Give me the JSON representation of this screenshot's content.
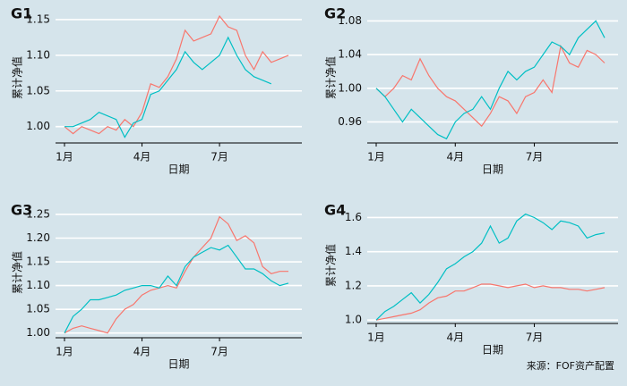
{
  "chart_data": [
    {
      "type": "line",
      "title": "G1",
      "y_label": "累计净值",
      "x_label": "日期",
      "categories": [
        "1月",
        null,
        null,
        null,
        null,
        null,
        null,
        null,
        null,
        "4月",
        null,
        null,
        null,
        null,
        null,
        null,
        null,
        null,
        "7月",
        null,
        null,
        null,
        null,
        null,
        null,
        null,
        null
      ],
      "series": [
        {
          "color": "#f8766d",
          "values": [
            1.0,
            0.99,
            1.0,
            0.995,
            0.99,
            1.0,
            0.995,
            1.01,
            1.0,
            1.02,
            1.06,
            1.055,
            1.07,
            1.095,
            1.135,
            1.12,
            1.125,
            1.13,
            1.155,
            1.14,
            1.135,
            1.1,
            1.08,
            1.105,
            1.09,
            1.095,
            1.1
          ]
        },
        {
          "color": "#00bfc4",
          "values": [
            1.0,
            1.0,
            1.005,
            1.01,
            1.02,
            1.015,
            1.01,
            0.985,
            1.005,
            1.01,
            1.045,
            1.05,
            1.065,
            1.08,
            1.105,
            1.09,
            1.08,
            1.09,
            1.1,
            1.125,
            1.1,
            1.08,
            1.07,
            1.065,
            1.06,
            null,
            null
          ]
        }
      ],
      "ylim": [
        0.977,
        1.16
      ],
      "yticks": [
        {
          "value": 1,
          "label": "1.00"
        },
        {
          "value": 1.05,
          "label": "1.05"
        },
        {
          "value": 1.1,
          "label": "1.10"
        },
        {
          "value": 1.15,
          "label": "1.15"
        }
      ],
      "grid": true
    },
    {
      "type": "line",
      "title": "G2",
      "y_label": "累计净值",
      "x_label": "日期",
      "categories": [
        "1月",
        null,
        null,
        null,
        null,
        null,
        null,
        null,
        null,
        "4月",
        null,
        null,
        null,
        null,
        null,
        null,
        null,
        null,
        "7月",
        null,
        null,
        null,
        null,
        null,
        null,
        null,
        null
      ],
      "series": [
        {
          "color": "#f8766d",
          "values": [
            1.0,
            0.99,
            1.0,
            1.015,
            1.01,
            1.035,
            1.015,
            1.0,
            0.99,
            0.985,
            0.975,
            0.965,
            0.955,
            0.97,
            0.99,
            0.985,
            0.97,
            0.99,
            0.995,
            1.01,
            0.995,
            1.05,
            1.03,
            1.025,
            1.045,
            1.04,
            1.03
          ]
        },
        {
          "color": "#00bfc4",
          "values": [
            1.0,
            0.99,
            0.975,
            0.96,
            0.975,
            0.965,
            0.955,
            0.945,
            0.94,
            0.96,
            0.97,
            0.975,
            0.99,
            0.975,
            1.0,
            1.02,
            1.01,
            1.02,
            1.025,
            1.04,
            1.055,
            1.05,
            1.04,
            1.06,
            1.07,
            1.08,
            1.06
          ]
        }
      ],
      "ylim": [
        0.935,
        1.09
      ],
      "yticks": [
        {
          "value": 0.96,
          "label": "0.96"
        },
        {
          "value": 1,
          "label": "1.00"
        },
        {
          "value": 1.04,
          "label": "1.04"
        },
        {
          "value": 1.08,
          "label": "1.08"
        }
      ],
      "grid": true
    },
    {
      "type": "line",
      "title": "G3",
      "y_label": "累计净值",
      "x_label": "日期",
      "categories": [
        "1月",
        null,
        null,
        null,
        null,
        null,
        null,
        null,
        null,
        "4月",
        null,
        null,
        null,
        null,
        null,
        null,
        null,
        null,
        "7月",
        null,
        null,
        null,
        null,
        null,
        null,
        null,
        null
      ],
      "series": [
        {
          "color": "#f8766d",
          "values": [
            1.0,
            1.01,
            1.015,
            1.01,
            1.005,
            1.0,
            1.03,
            1.05,
            1.06,
            1.08,
            1.09,
            1.095,
            1.1,
            1.095,
            1.13,
            1.16,
            1.18,
            1.2,
            1.245,
            1.23,
            1.195,
            1.205,
            1.19,
            1.14,
            1.125,
            1.13,
            1.13
          ]
        },
        {
          "color": "#00bfc4",
          "values": [
            1.0,
            1.035,
            1.05,
            1.07,
            1.07,
            1.075,
            1.08,
            1.09,
            1.095,
            1.1,
            1.1,
            1.095,
            1.12,
            1.1,
            1.14,
            1.16,
            1.17,
            1.18,
            1.175,
            1.185,
            1.16,
            1.135,
            1.135,
            1.125,
            1.11,
            1.1,
            1.105
          ]
        }
      ],
      "ylim": [
        0.99,
        1.265
      ],
      "yticks": [
        {
          "value": 1,
          "label": "1.00"
        },
        {
          "value": 1.05,
          "label": "1.05"
        },
        {
          "value": 1.1,
          "label": "1.10"
        },
        {
          "value": 1.15,
          "label": "1.15"
        },
        {
          "value": 1.2,
          "label": "1.20"
        },
        {
          "value": 1.25,
          "label": "1.25"
        }
      ],
      "grid": true
    },
    {
      "type": "line",
      "title": "G4",
      "y_label": "累计净值",
      "x_label": "日期",
      "categories": [
        "1月",
        null,
        null,
        null,
        null,
        null,
        null,
        null,
        null,
        "4月",
        null,
        null,
        null,
        null,
        null,
        null,
        null,
        null,
        "7月",
        null,
        null,
        null,
        null,
        null,
        null,
        null,
        null
      ],
      "series": [
        {
          "color": "#f8766d",
          "values": [
            1.0,
            1.01,
            1.02,
            1.03,
            1.04,
            1.06,
            1.1,
            1.13,
            1.14,
            1.17,
            1.17,
            1.19,
            1.21,
            1.21,
            1.2,
            1.19,
            1.2,
            1.21,
            1.19,
            1.2,
            1.19,
            1.19,
            1.18,
            1.18,
            1.17,
            1.18,
            1.19
          ]
        },
        {
          "color": "#00bfc4",
          "values": [
            1.0,
            1.05,
            1.08,
            1.12,
            1.16,
            1.1,
            1.15,
            1.22,
            1.3,
            1.33,
            1.37,
            1.4,
            1.45,
            1.55,
            1.45,
            1.48,
            1.58,
            1.62,
            1.6,
            1.57,
            1.53,
            1.58,
            1.57,
            1.55,
            1.48,
            1.5,
            1.51
          ]
        }
      ],
      "ylim": [
        0.98,
        1.66
      ],
      "yticks": [
        {
          "value": 1,
          "label": "1.0"
        },
        {
          "value": 1.2,
          "label": "1.2"
        },
        {
          "value": 1.4,
          "label": "1.4"
        },
        {
          "value": 1.6,
          "label": "1.6"
        }
      ],
      "grid": true
    }
  ],
  "source": "来源：FOF资产配置"
}
